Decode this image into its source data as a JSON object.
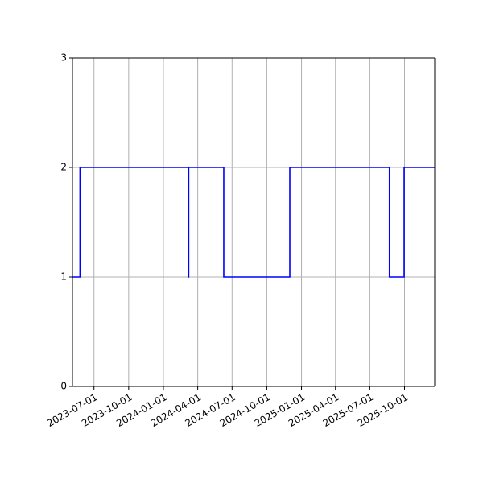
{
  "chart_data": {
    "type": "line",
    "title": "",
    "xlabel": "",
    "ylabel": "",
    "grid": "vertical and horizontal gridlines",
    "xlim": [
      "2023-05-05",
      "2025-12-20"
    ],
    "ylim": [
      0,
      3
    ],
    "x_ticks": [
      "2023-07-01",
      "2023-10-01",
      "2024-01-01",
      "2024-04-01",
      "2024-07-01",
      "2024-10-01",
      "2025-01-01",
      "2025-04-01",
      "2025-07-01",
      "2025-10-01"
    ],
    "y_ticks": [
      "0",
      "1",
      "2",
      "3"
    ],
    "series": [
      {
        "color": "#0000ff",
        "drawstyle": "steps",
        "x": [
          "2023-05-05",
          "2023-05-25",
          "2023-05-25",
          "2024-03-07",
          "2024-03-07",
          "2024-03-08",
          "2024-03-08",
          "2024-06-09",
          "2024-06-09",
          "2024-12-01",
          "2024-12-01",
          "2025-08-22",
          "2025-08-22",
          "2025-09-30",
          "2025-09-30",
          "2025-12-20"
        ],
        "y": [
          1,
          1,
          2,
          2,
          1,
          1,
          2,
          2,
          1,
          1,
          2,
          2,
          1,
          1,
          2,
          2
        ]
      }
    ]
  }
}
